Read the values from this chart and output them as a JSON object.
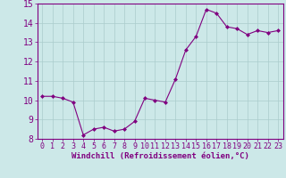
{
  "x": [
    0,
    1,
    2,
    3,
    4,
    5,
    6,
    7,
    8,
    9,
    10,
    11,
    12,
    13,
    14,
    15,
    16,
    17,
    18,
    19,
    20,
    21,
    22,
    23
  ],
  "y": [
    10.2,
    10.2,
    10.1,
    9.9,
    8.2,
    8.5,
    8.6,
    8.4,
    8.5,
    8.9,
    10.1,
    10.0,
    9.9,
    11.1,
    12.6,
    13.3,
    14.7,
    14.5,
    13.8,
    13.7,
    13.4,
    13.6,
    13.5,
    13.6
  ],
  "line_color": "#800080",
  "marker": "D",
  "marker_size": 2.0,
  "bg_color": "#cce8e8",
  "grid_color": "#aacccc",
  "xlabel": "Windchill (Refroidissement éolien,°C)",
  "xlabel_color": "#800080",
  "tick_color": "#800080",
  "spine_color": "#800080",
  "ylim": [
    8,
    15
  ],
  "xlim_min": -0.5,
  "xlim_max": 23.5,
  "yticks": [
    8,
    9,
    10,
    11,
    12,
    13,
    14,
    15
  ],
  "xticks": [
    0,
    1,
    2,
    3,
    4,
    5,
    6,
    7,
    8,
    9,
    10,
    11,
    12,
    13,
    14,
    15,
    16,
    17,
    18,
    19,
    20,
    21,
    22,
    23
  ],
  "tick_fontsize": 6.0,
  "xlabel_fontsize": 6.5,
  "xlabel_bold": true
}
